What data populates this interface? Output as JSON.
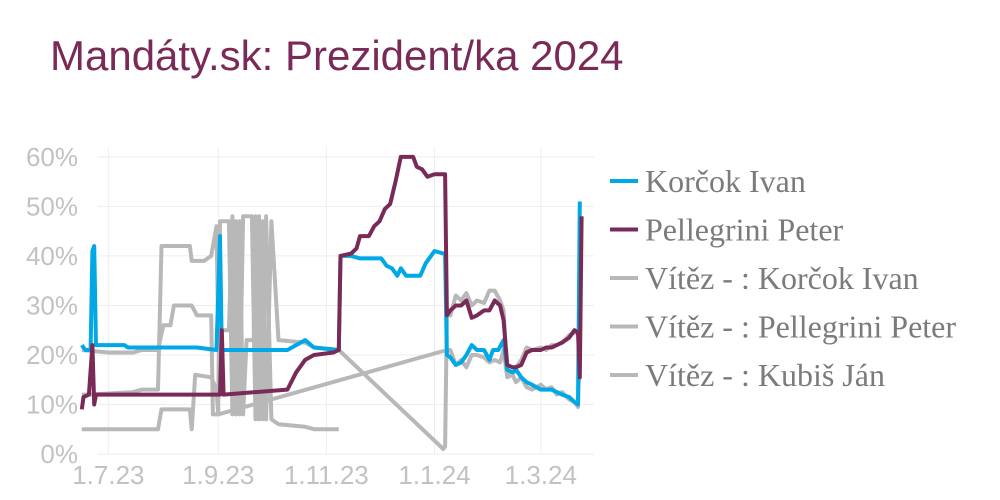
{
  "chart_data": {
    "type": "line",
    "title": "Mandáty.sk: Prezident/ka 2024",
    "xlabel": "",
    "ylabel": "",
    "ylim": [
      0,
      62
    ],
    "xlim": [
      "2023-06-15",
      "2024-03-31"
    ],
    "grid": true,
    "legend_position": "right",
    "y_ticks": [
      0,
      10,
      20,
      30,
      40,
      50,
      60
    ],
    "y_tick_labels": [
      "0%",
      "10%",
      "20%",
      "30%",
      "40%",
      "50%",
      "60%"
    ],
    "x_ticks": [
      "2023-07-01",
      "2023-09-01",
      "2023-11-01",
      "2024-01-01",
      "2024-03-01"
    ],
    "x_tick_labels": [
      "1.7.23",
      "1.9.23",
      "1.11.23",
      "1.1.24",
      "1.3.24"
    ],
    "series": [
      {
        "name": "Korčok Ivan",
        "color": "#00a8e6",
        "points": [
          [
            "2023-06-16",
            22
          ],
          [
            "2023-06-18",
            21
          ],
          [
            "2023-06-21",
            21
          ],
          [
            "2023-06-22",
            41
          ],
          [
            "2023-06-23",
            42
          ],
          [
            "2023-06-24",
            22
          ],
          [
            "2023-07-05",
            22
          ],
          [
            "2023-07-10",
            22
          ],
          [
            "2023-07-12",
            21.5
          ],
          [
            "2023-07-25",
            21.5
          ],
          [
            "2023-08-05",
            21.5
          ],
          [
            "2023-08-20",
            21.5
          ],
          [
            "2023-08-31",
            21
          ],
          [
            "2023-09-02",
            44
          ],
          [
            "2023-09-03",
            21
          ],
          [
            "2023-10-10",
            21
          ],
          [
            "2023-10-20",
            23
          ],
          [
            "2023-10-25",
            21.5
          ],
          [
            "2023-11-08",
            21
          ],
          [
            "2023-11-09",
            40
          ],
          [
            "2023-11-15",
            40
          ],
          [
            "2023-11-20",
            39.5
          ],
          [
            "2023-11-28",
            39.5
          ],
          [
            "2023-12-02",
            39.5
          ],
          [
            "2023-12-05",
            38
          ],
          [
            "2023-12-08",
            37.5
          ],
          [
            "2023-12-11",
            36
          ],
          [
            "2023-12-13",
            37.5
          ],
          [
            "2023-12-16",
            36
          ],
          [
            "2023-12-20",
            36
          ],
          [
            "2023-12-24",
            36
          ],
          [
            "2023-12-27",
            38.5
          ],
          [
            "2023-12-29",
            39.5
          ],
          [
            "2024-01-01",
            41
          ],
          [
            "2024-01-06",
            40.5
          ],
          [
            "2024-01-07",
            40.5
          ],
          [
            "2024-01-08",
            20
          ],
          [
            "2024-01-10",
            19.5
          ],
          [
            "2024-01-13",
            18
          ],
          [
            "2024-01-16",
            18.5
          ],
          [
            "2024-01-19",
            20
          ],
          [
            "2024-01-22",
            22
          ],
          [
            "2024-01-25",
            21
          ],
          [
            "2024-01-29",
            21
          ],
          [
            "2024-02-01",
            19
          ],
          [
            "2024-02-03",
            21
          ],
          [
            "2024-02-06",
            21
          ],
          [
            "2024-02-09",
            23
          ],
          [
            "2024-02-11",
            17
          ],
          [
            "2024-02-14",
            16.5
          ],
          [
            "2024-02-16",
            17
          ],
          [
            "2024-02-19",
            15.5
          ],
          [
            "2024-02-22",
            14.5
          ],
          [
            "2024-02-25",
            14
          ],
          [
            "2024-03-01",
            13
          ],
          [
            "2024-03-04",
            13
          ],
          [
            "2024-03-07",
            13
          ],
          [
            "2024-03-10",
            12.5
          ],
          [
            "2024-03-13",
            12
          ],
          [
            "2024-03-17",
            11.5
          ],
          [
            "2024-03-20",
            10.5
          ],
          [
            "2024-03-22",
            10
          ],
          [
            "2024-03-23",
            51
          ]
        ]
      },
      {
        "name": "Pellegrini Peter",
        "color": "#7a2a57",
        "points": [
          [
            "2023-06-16",
            9
          ],
          [
            "2023-06-17",
            11.5
          ],
          [
            "2023-06-20",
            12
          ],
          [
            "2023-06-22",
            22
          ],
          [
            "2023-06-23",
            10
          ],
          [
            "2023-06-24",
            12
          ],
          [
            "2023-07-10",
            12
          ],
          [
            "2023-08-05",
            12
          ],
          [
            "2023-08-06",
            12
          ],
          [
            "2023-09-02",
            12
          ],
          [
            "2023-09-03",
            25
          ],
          [
            "2023-09-04",
            12
          ],
          [
            "2023-10-10",
            13
          ],
          [
            "2023-10-15",
            16.5
          ],
          [
            "2023-10-20",
            19
          ],
          [
            "2023-10-25",
            20
          ],
          [
            "2023-11-05",
            20.5
          ],
          [
            "2023-11-08",
            21
          ],
          [
            "2023-11-09",
            40
          ],
          [
            "2023-11-15",
            40.5
          ],
          [
            "2023-11-18",
            41.5
          ],
          [
            "2023-11-20",
            44
          ],
          [
            "2023-11-25",
            44
          ],
          [
            "2023-11-28",
            46
          ],
          [
            "2023-12-01",
            47
          ],
          [
            "2023-12-04",
            49.5
          ],
          [
            "2023-12-07",
            50.5
          ],
          [
            "2023-12-10",
            55
          ],
          [
            "2023-12-13",
            60
          ],
          [
            "2023-12-17",
            60
          ],
          [
            "2023-12-20",
            60
          ],
          [
            "2023-12-22",
            58
          ],
          [
            "2023-12-25",
            57.5
          ],
          [
            "2023-12-28",
            56
          ],
          [
            "2024-01-01",
            56.5
          ],
          [
            "2024-01-06",
            56.5
          ],
          [
            "2024-01-07",
            56.5
          ],
          [
            "2024-01-08",
            28
          ],
          [
            "2024-01-10",
            29
          ],
          [
            "2024-01-13",
            30
          ],
          [
            "2024-01-16",
            30
          ],
          [
            "2024-01-19",
            31
          ],
          [
            "2024-01-22",
            27.5
          ],
          [
            "2024-01-25",
            28
          ],
          [
            "2024-01-29",
            29
          ],
          [
            "2024-02-01",
            29
          ],
          [
            "2024-02-04",
            31
          ],
          [
            "2024-02-07",
            30
          ],
          [
            "2024-02-09",
            27
          ],
          [
            "2024-02-11",
            18
          ],
          [
            "2024-02-14",
            17.5
          ],
          [
            "2024-02-16",
            17.5
          ],
          [
            "2024-02-19",
            18
          ],
          [
            "2024-02-22",
            20.5
          ],
          [
            "2024-02-25",
            21
          ],
          [
            "2024-03-01",
            21
          ],
          [
            "2024-03-04",
            21.5
          ],
          [
            "2024-03-07",
            21.5
          ],
          [
            "2024-03-10",
            22
          ],
          [
            "2024-03-13",
            22.5
          ],
          [
            "2024-03-17",
            23.5
          ],
          [
            "2024-03-20",
            25
          ],
          [
            "2024-03-22",
            24.5
          ],
          [
            "2024-03-23",
            15.5
          ],
          [
            "2024-03-24",
            48
          ]
        ]
      },
      {
        "name": "Vítěz - : Korčok Ivan",
        "color": "#b8b8b8",
        "points": [
          [
            "2023-06-16",
            21
          ],
          [
            "2023-07-01",
            20.5
          ],
          [
            "2023-07-15",
            20.5
          ],
          [
            "2023-07-20",
            21
          ],
          [
            "2023-07-29",
            21
          ],
          [
            "2023-08-01",
            26
          ],
          [
            "2023-08-05",
            26
          ],
          [
            "2023-08-07",
            30
          ],
          [
            "2023-08-15",
            30
          ],
          [
            "2023-08-17",
            30
          ],
          [
            "2023-08-20",
            28
          ],
          [
            "2023-08-28",
            28
          ],
          [
            "2023-08-29",
            8
          ],
          [
            "2023-09-01",
            8
          ],
          [
            "2023-09-02",
            47
          ],
          [
            "2023-09-06",
            47
          ],
          [
            "2023-09-07",
            47
          ],
          [
            "2023-09-09",
            8
          ],
          [
            "2023-09-11",
            47
          ],
          [
            "2023-09-13",
            8
          ],
          [
            "2023-09-15",
            48
          ],
          [
            "2023-09-20",
            48
          ],
          [
            "2023-09-22",
            7
          ],
          [
            "2023-09-24",
            48
          ],
          [
            "2023-09-26",
            7
          ],
          [
            "2023-09-28",
            48
          ],
          [
            "2023-10-01",
            7
          ],
          [
            "2023-10-05",
            6
          ],
          [
            "2023-10-20",
            5.5
          ],
          [
            "2023-10-25",
            5
          ],
          [
            "2023-11-05",
            5
          ],
          [
            "2023-11-08",
            5
          ]
        ]
      },
      {
        "name": "Vítěz - : Pellegrini Peter",
        "color": "#b8b8b8",
        "points": [
          [
            "2023-06-16",
            12
          ],
          [
            "2023-06-20",
            12
          ],
          [
            "2023-07-15",
            12.5
          ],
          [
            "2023-07-20",
            13
          ],
          [
            "2023-07-29",
            13
          ],
          [
            "2023-07-31",
            42
          ],
          [
            "2023-08-16",
            42
          ],
          [
            "2023-08-17",
            39
          ],
          [
            "2023-08-24",
            39
          ],
          [
            "2023-08-28",
            40
          ],
          [
            "2023-08-31",
            46
          ],
          [
            "2023-09-01",
            25
          ],
          [
            "2023-09-06",
            25
          ],
          [
            "2023-09-07",
            25
          ],
          [
            "2023-09-09",
            48
          ],
          [
            "2023-09-11",
            8
          ],
          [
            "2023-09-13",
            47
          ],
          [
            "2023-09-15",
            8
          ],
          [
            "2023-09-17",
            23
          ],
          [
            "2023-09-21",
            23
          ],
          [
            "2023-09-22",
            48
          ],
          [
            "2023-09-24",
            7
          ],
          [
            "2023-09-26",
            47
          ],
          [
            "2023-09-28",
            7
          ],
          [
            "2023-10-01",
            47
          ],
          [
            "2023-10-05",
            23
          ],
          [
            "2023-10-20",
            22.5
          ],
          [
            "2023-10-25",
            21.5
          ],
          [
            "2023-11-08",
            21
          ],
          [
            "2024-01-06",
            1
          ],
          [
            "2024-01-07",
            1.5
          ],
          [
            "2024-01-08",
            28
          ],
          [
            "2024-01-10",
            28
          ],
          [
            "2024-01-13",
            32
          ],
          [
            "2024-01-16",
            31
          ],
          [
            "2024-01-19",
            32.5
          ],
          [
            "2024-01-22",
            30
          ],
          [
            "2024-01-25",
            31
          ],
          [
            "2024-01-29",
            30.5
          ],
          [
            "2024-02-01",
            33
          ],
          [
            "2024-02-04",
            33
          ],
          [
            "2024-02-07",
            31
          ],
          [
            "2024-02-09",
            29
          ],
          [
            "2024-02-11",
            16
          ],
          [
            "2024-02-14",
            16
          ],
          [
            "2024-02-16",
            14.5
          ],
          [
            "2024-02-19",
            15.5
          ],
          [
            "2024-02-22",
            13.5
          ],
          [
            "2024-02-25",
            13
          ],
          [
            "2024-03-01",
            14
          ],
          [
            "2024-03-04",
            13
          ],
          [
            "2024-03-07",
            13.5
          ],
          [
            "2024-03-10",
            12
          ],
          [
            "2024-03-13",
            12.5
          ],
          [
            "2024-03-17",
            11
          ],
          [
            "2024-03-20",
            10.5
          ],
          [
            "2024-03-22",
            9.5
          ],
          [
            "2024-03-23",
            21
          ]
        ]
      },
      {
        "name": "Vítěz - : Kubiš Ján",
        "color": "#b8b8b8",
        "points": [
          [
            "2023-06-16",
            5
          ],
          [
            "2023-06-20",
            5
          ],
          [
            "2023-06-25",
            5
          ],
          [
            "2023-07-29",
            5
          ],
          [
            "2023-07-31",
            9
          ],
          [
            "2023-08-16",
            9
          ],
          [
            "2023-08-17",
            5
          ],
          [
            "2023-08-19",
            16
          ],
          [
            "2023-08-28",
            15.5
          ],
          [
            "2023-08-31",
            13
          ],
          [
            "2023-09-01",
            8
          ],
          [
            "2024-01-08",
            21
          ],
          [
            "2024-01-10",
            21
          ],
          [
            "2024-01-13",
            18
          ],
          [
            "2024-01-16",
            19
          ],
          [
            "2024-01-19",
            17.5
          ],
          [
            "2024-01-22",
            20
          ],
          [
            "2024-01-25",
            20
          ],
          [
            "2024-01-29",
            19.5
          ],
          [
            "2024-02-01",
            18.5
          ],
          [
            "2024-02-04",
            19
          ],
          [
            "2024-02-07",
            18.5
          ],
          [
            "2024-02-09",
            21
          ],
          [
            "2024-02-11",
            15.5
          ],
          [
            "2024-02-14",
            16
          ],
          [
            "2024-02-16",
            17.5
          ],
          [
            "2024-02-19",
            19
          ],
          [
            "2024-02-22",
            21.5
          ],
          [
            "2024-02-25",
            21
          ],
          [
            "2024-03-01",
            21.5
          ],
          [
            "2024-03-04",
            21
          ],
          [
            "2024-03-07",
            22
          ],
          [
            "2024-03-10",
            22
          ],
          [
            "2024-03-13",
            22.5
          ],
          [
            "2024-03-17",
            24
          ],
          [
            "2024-03-20",
            24.5
          ],
          [
            "2024-03-22",
            25
          ],
          [
            "2024-03-23",
            20
          ]
        ]
      }
    ]
  }
}
